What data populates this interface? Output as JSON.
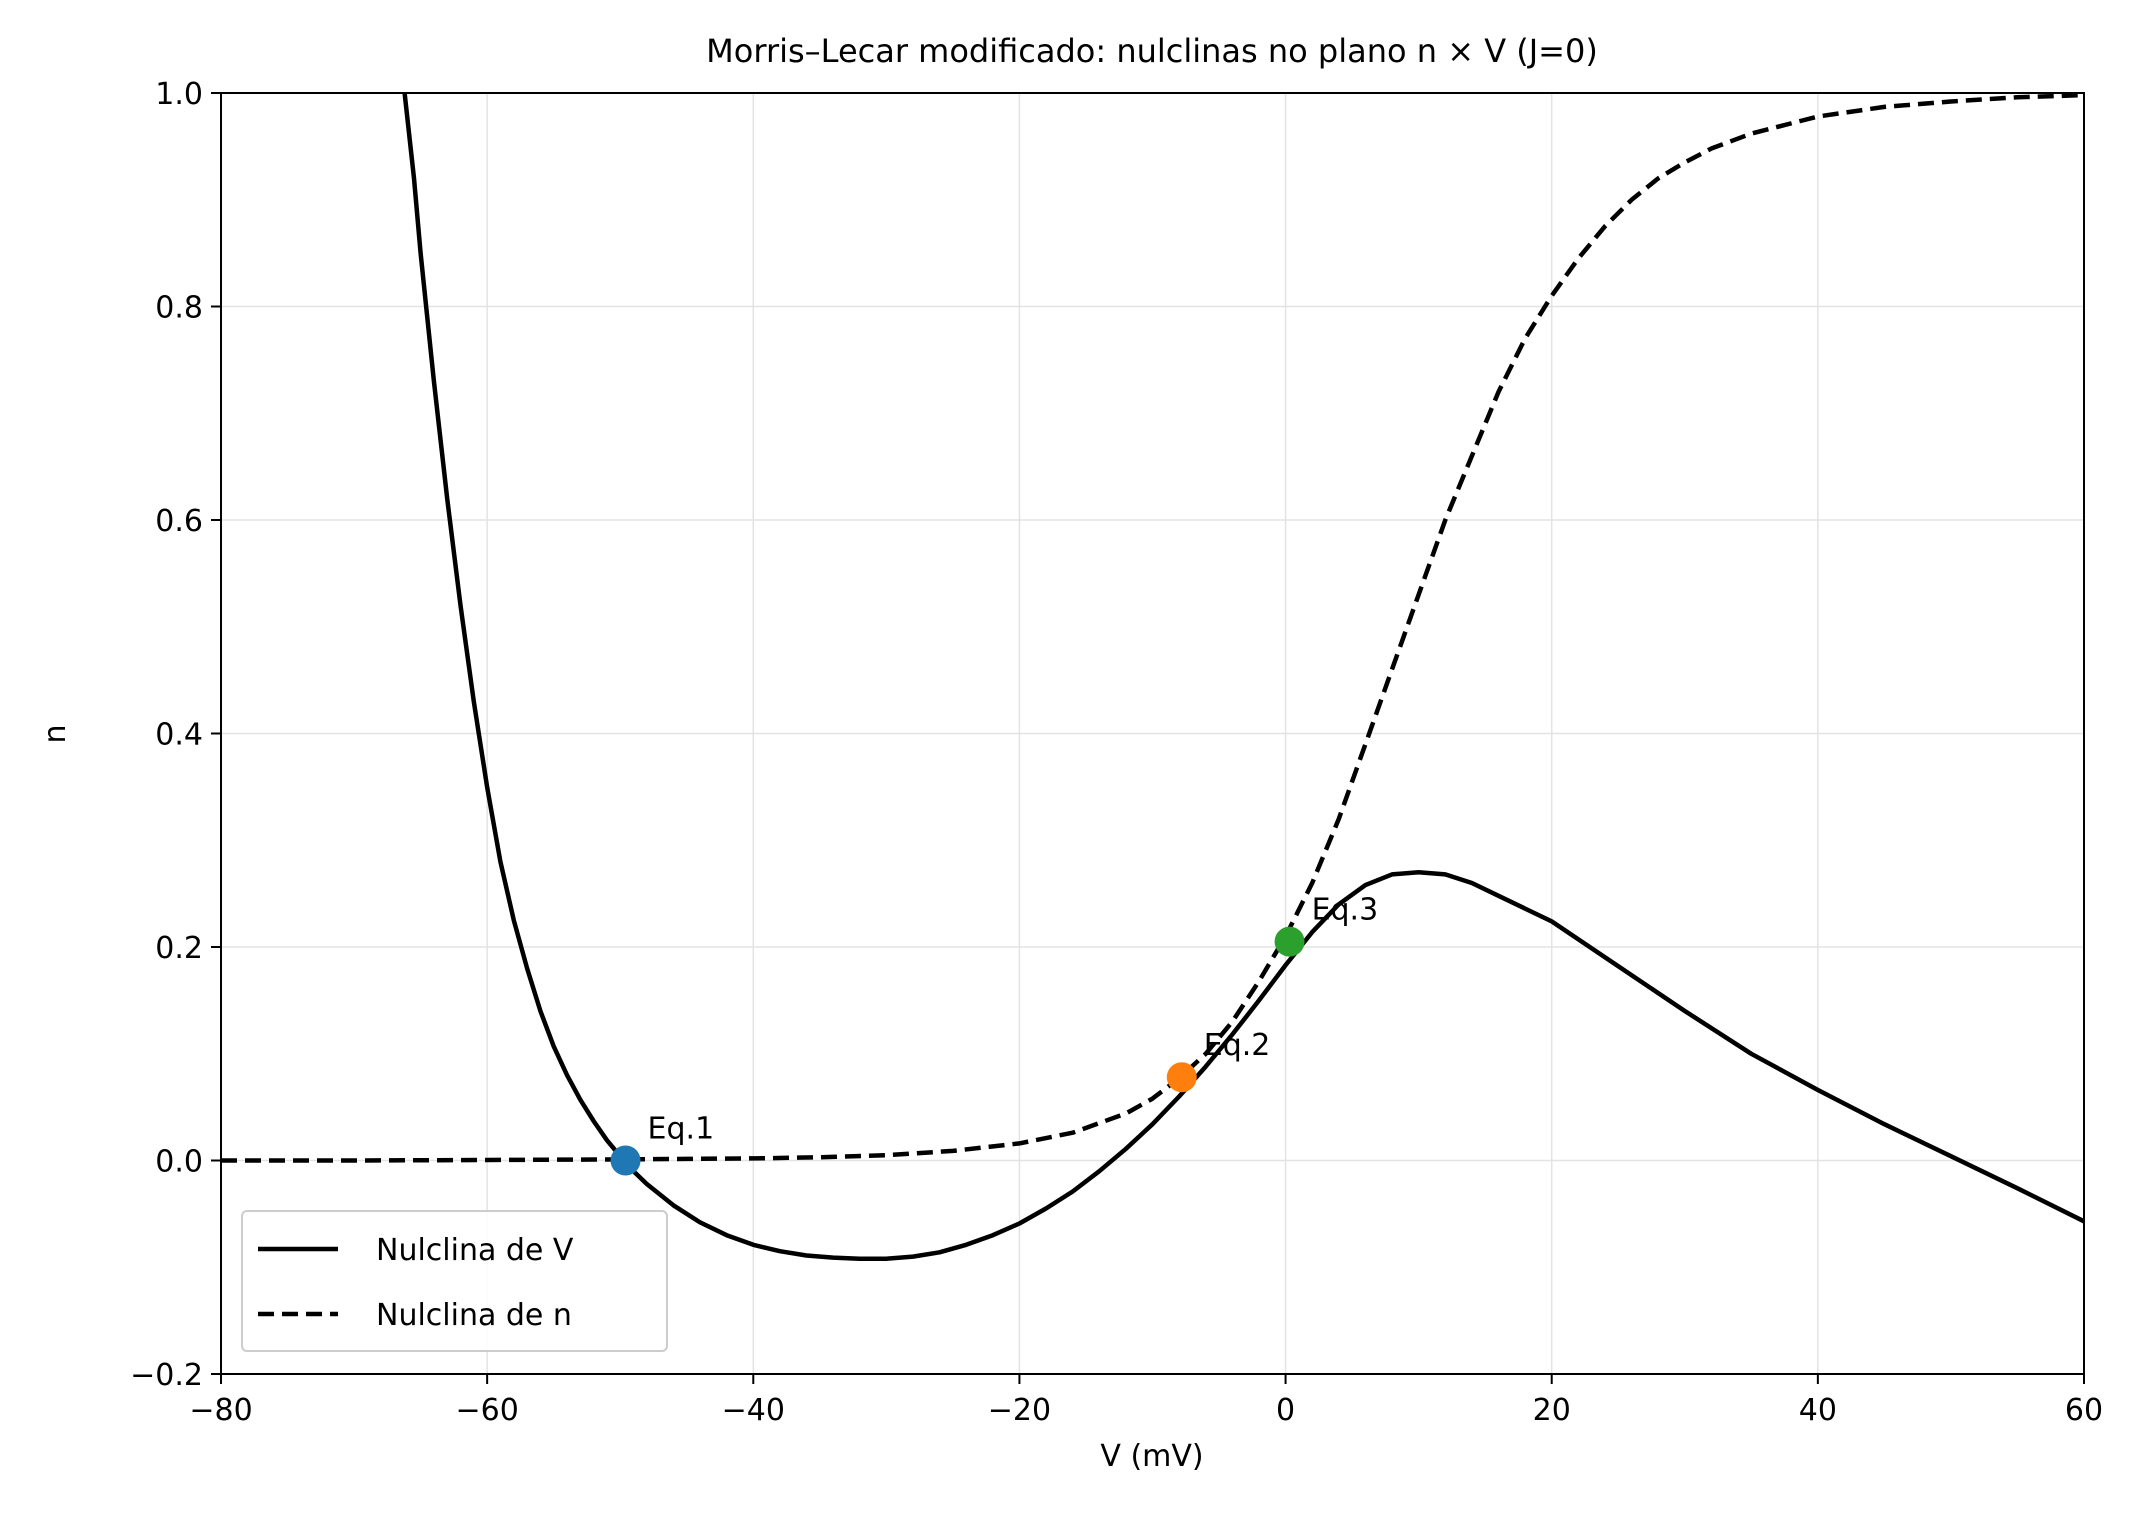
{
  "chart_data": {
    "type": "line",
    "title": "Morris–Lecar modificado: nulclinas no plano n × V (J=0)",
    "xlabel": "V (mV)",
    "ylabel": "n",
    "xlim": [
      -80,
      60
    ],
    "ylim": [
      -0.2,
      1.0
    ],
    "xticks": [
      -80,
      -60,
      -40,
      -20,
      0,
      20,
      40,
      60
    ],
    "yticks": [
      -0.2,
      0.0,
      0.2,
      0.4,
      0.6,
      0.8,
      1.0
    ],
    "xtick_labels": [
      "−80",
      "−60",
      "−40",
      "−20",
      "0",
      "20",
      "40",
      "60"
    ],
    "ytick_labels": [
      "−0.2",
      "0.0",
      "0.2",
      "0.4",
      "0.6",
      "0.8",
      "1.0"
    ],
    "grid": true,
    "legend": {
      "position": "lower-left"
    },
    "series": [
      {
        "name": "Nulclina de V",
        "style": "solid",
        "color": "#000000",
        "x": [
          -66.2,
          -65.5,
          -65,
          -64,
          -63,
          -62,
          -61,
          -60,
          -59,
          -58,
          -57,
          -56,
          -55,
          -54,
          -53,
          -52,
          -51,
          -50,
          -49,
          -48,
          -46,
          -44,
          -42,
          -40,
          -38,
          -36,
          -34,
          -32,
          -30,
          -28,
          -26,
          -24,
          -22,
          -20,
          -18,
          -16,
          -14,
          -12,
          -10,
          -8,
          -6,
          -4,
          -2,
          0,
          2,
          4,
          6,
          8,
          10,
          12,
          14,
          16,
          18,
          20,
          25,
          30,
          35,
          40,
          45,
          50,
          55,
          60
        ],
        "y": [
          1.0,
          0.92,
          0.85,
          0.73,
          0.62,
          0.52,
          0.43,
          0.35,
          0.28,
          0.225,
          0.18,
          0.14,
          0.107,
          0.08,
          0.057,
          0.037,
          0.019,
          0.004,
          -0.01,
          -0.022,
          -0.042,
          -0.058,
          -0.07,
          -0.079,
          -0.085,
          -0.089,
          -0.091,
          -0.092,
          -0.092,
          -0.09,
          -0.086,
          -0.079,
          -0.07,
          -0.059,
          -0.045,
          -0.029,
          -0.01,
          0.011,
          0.034,
          0.06,
          0.088,
          0.118,
          0.15,
          0.183,
          0.214,
          0.24,
          0.258,
          0.268,
          0.27,
          0.268,
          0.26,
          0.248,
          0.236,
          0.224,
          0.182,
          0.14,
          0.1,
          0.066,
          0.034,
          0.004,
          -0.026,
          -0.057
        ]
      },
      {
        "name": "Nulclina de n",
        "style": "dashed",
        "color": "#000000",
        "x": [
          -80,
          -70,
          -60,
          -50,
          -45,
          -40,
          -35,
          -30,
          -25,
          -20,
          -16,
          -12,
          -10,
          -8,
          -6,
          -4,
          -2,
          0,
          2,
          4,
          6,
          8,
          10,
          12,
          14,
          16,
          18,
          20,
          22,
          24,
          26,
          28,
          30,
          32,
          35,
          40,
          45,
          50,
          55,
          60
        ],
        "y": [
          0.0,
          0.0,
          0.0005,
          0.001,
          0.0015,
          0.002,
          0.003,
          0.005,
          0.009,
          0.016,
          0.026,
          0.044,
          0.058,
          0.077,
          0.1,
          0.13,
          0.168,
          0.21,
          0.26,
          0.32,
          0.39,
          0.46,
          0.53,
          0.6,
          0.66,
          0.72,
          0.77,
          0.81,
          0.845,
          0.875,
          0.9,
          0.92,
          0.935,
          0.948,
          0.962,
          0.978,
          0.987,
          0.992,
          0.996,
          0.998
        ]
      }
    ],
    "points": [
      {
        "label": "Eq.1",
        "x": -49.6,
        "y": 0.0,
        "color": "#1f77b4"
      },
      {
        "label": "Eq.2",
        "x": -7.8,
        "y": 0.078,
        "color": "#ff7f0e"
      },
      {
        "label": "Eq.3",
        "x": 0.3,
        "y": 0.205,
        "color": "#2ca02c"
      }
    ]
  }
}
